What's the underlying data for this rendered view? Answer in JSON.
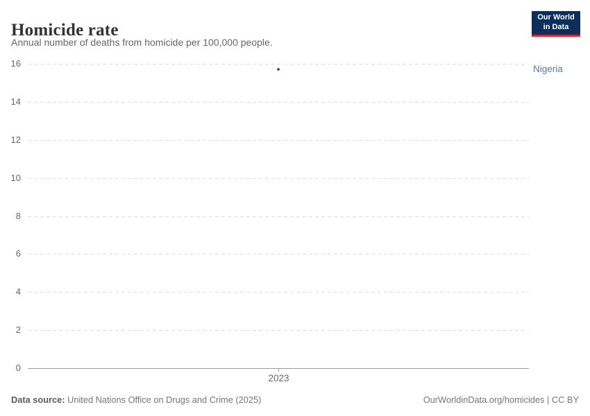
{
  "header": {
    "title": "Homicide rate",
    "subtitle": "Annual number of deaths from homicide per 100,000 people.",
    "logo": {
      "line1": "Our World",
      "line2": "in Data"
    }
  },
  "chart_data": {
    "type": "scatter",
    "title": "Homicide rate",
    "subtitle": "Annual number of deaths from homicide per 100,000 people.",
    "series": [
      {
        "name": "Nigeria",
        "color": "#3d5f94",
        "label_color": "#577aa9",
        "points": [
          {
            "x": 2023,
            "y": 15.7
          }
        ]
      }
    ],
    "x_ticks": [
      "2023"
    ],
    "y_ticks": [
      0,
      2,
      4,
      6,
      8,
      10,
      12,
      14,
      16
    ],
    "ylim": [
      0,
      16
    ],
    "xlabel": "",
    "ylabel": "",
    "grid": {
      "horizontal": true,
      "style": "dashed"
    },
    "legend_position": "entity-label-right"
  },
  "footer": {
    "source_label": "Data source:",
    "source_text": " United Nations Office on Drugs and Crime (2025)",
    "attribution": "OurWorldinData.org/homicides | CC BY"
  },
  "colors": {
    "accent_blue": "#4c6a9c",
    "point": "#3d5f94",
    "entity_label": "#577aa9",
    "gridline": "#dcdcdc",
    "axis": "#999999",
    "tick_text": "#666666",
    "title_text": "#333333",
    "subtitle_text": "#666666",
    "footer_text": "#757575",
    "logo_bg": "#0d2d5a",
    "logo_red": "#e0232c",
    "logo_text": "#ffffff"
  }
}
